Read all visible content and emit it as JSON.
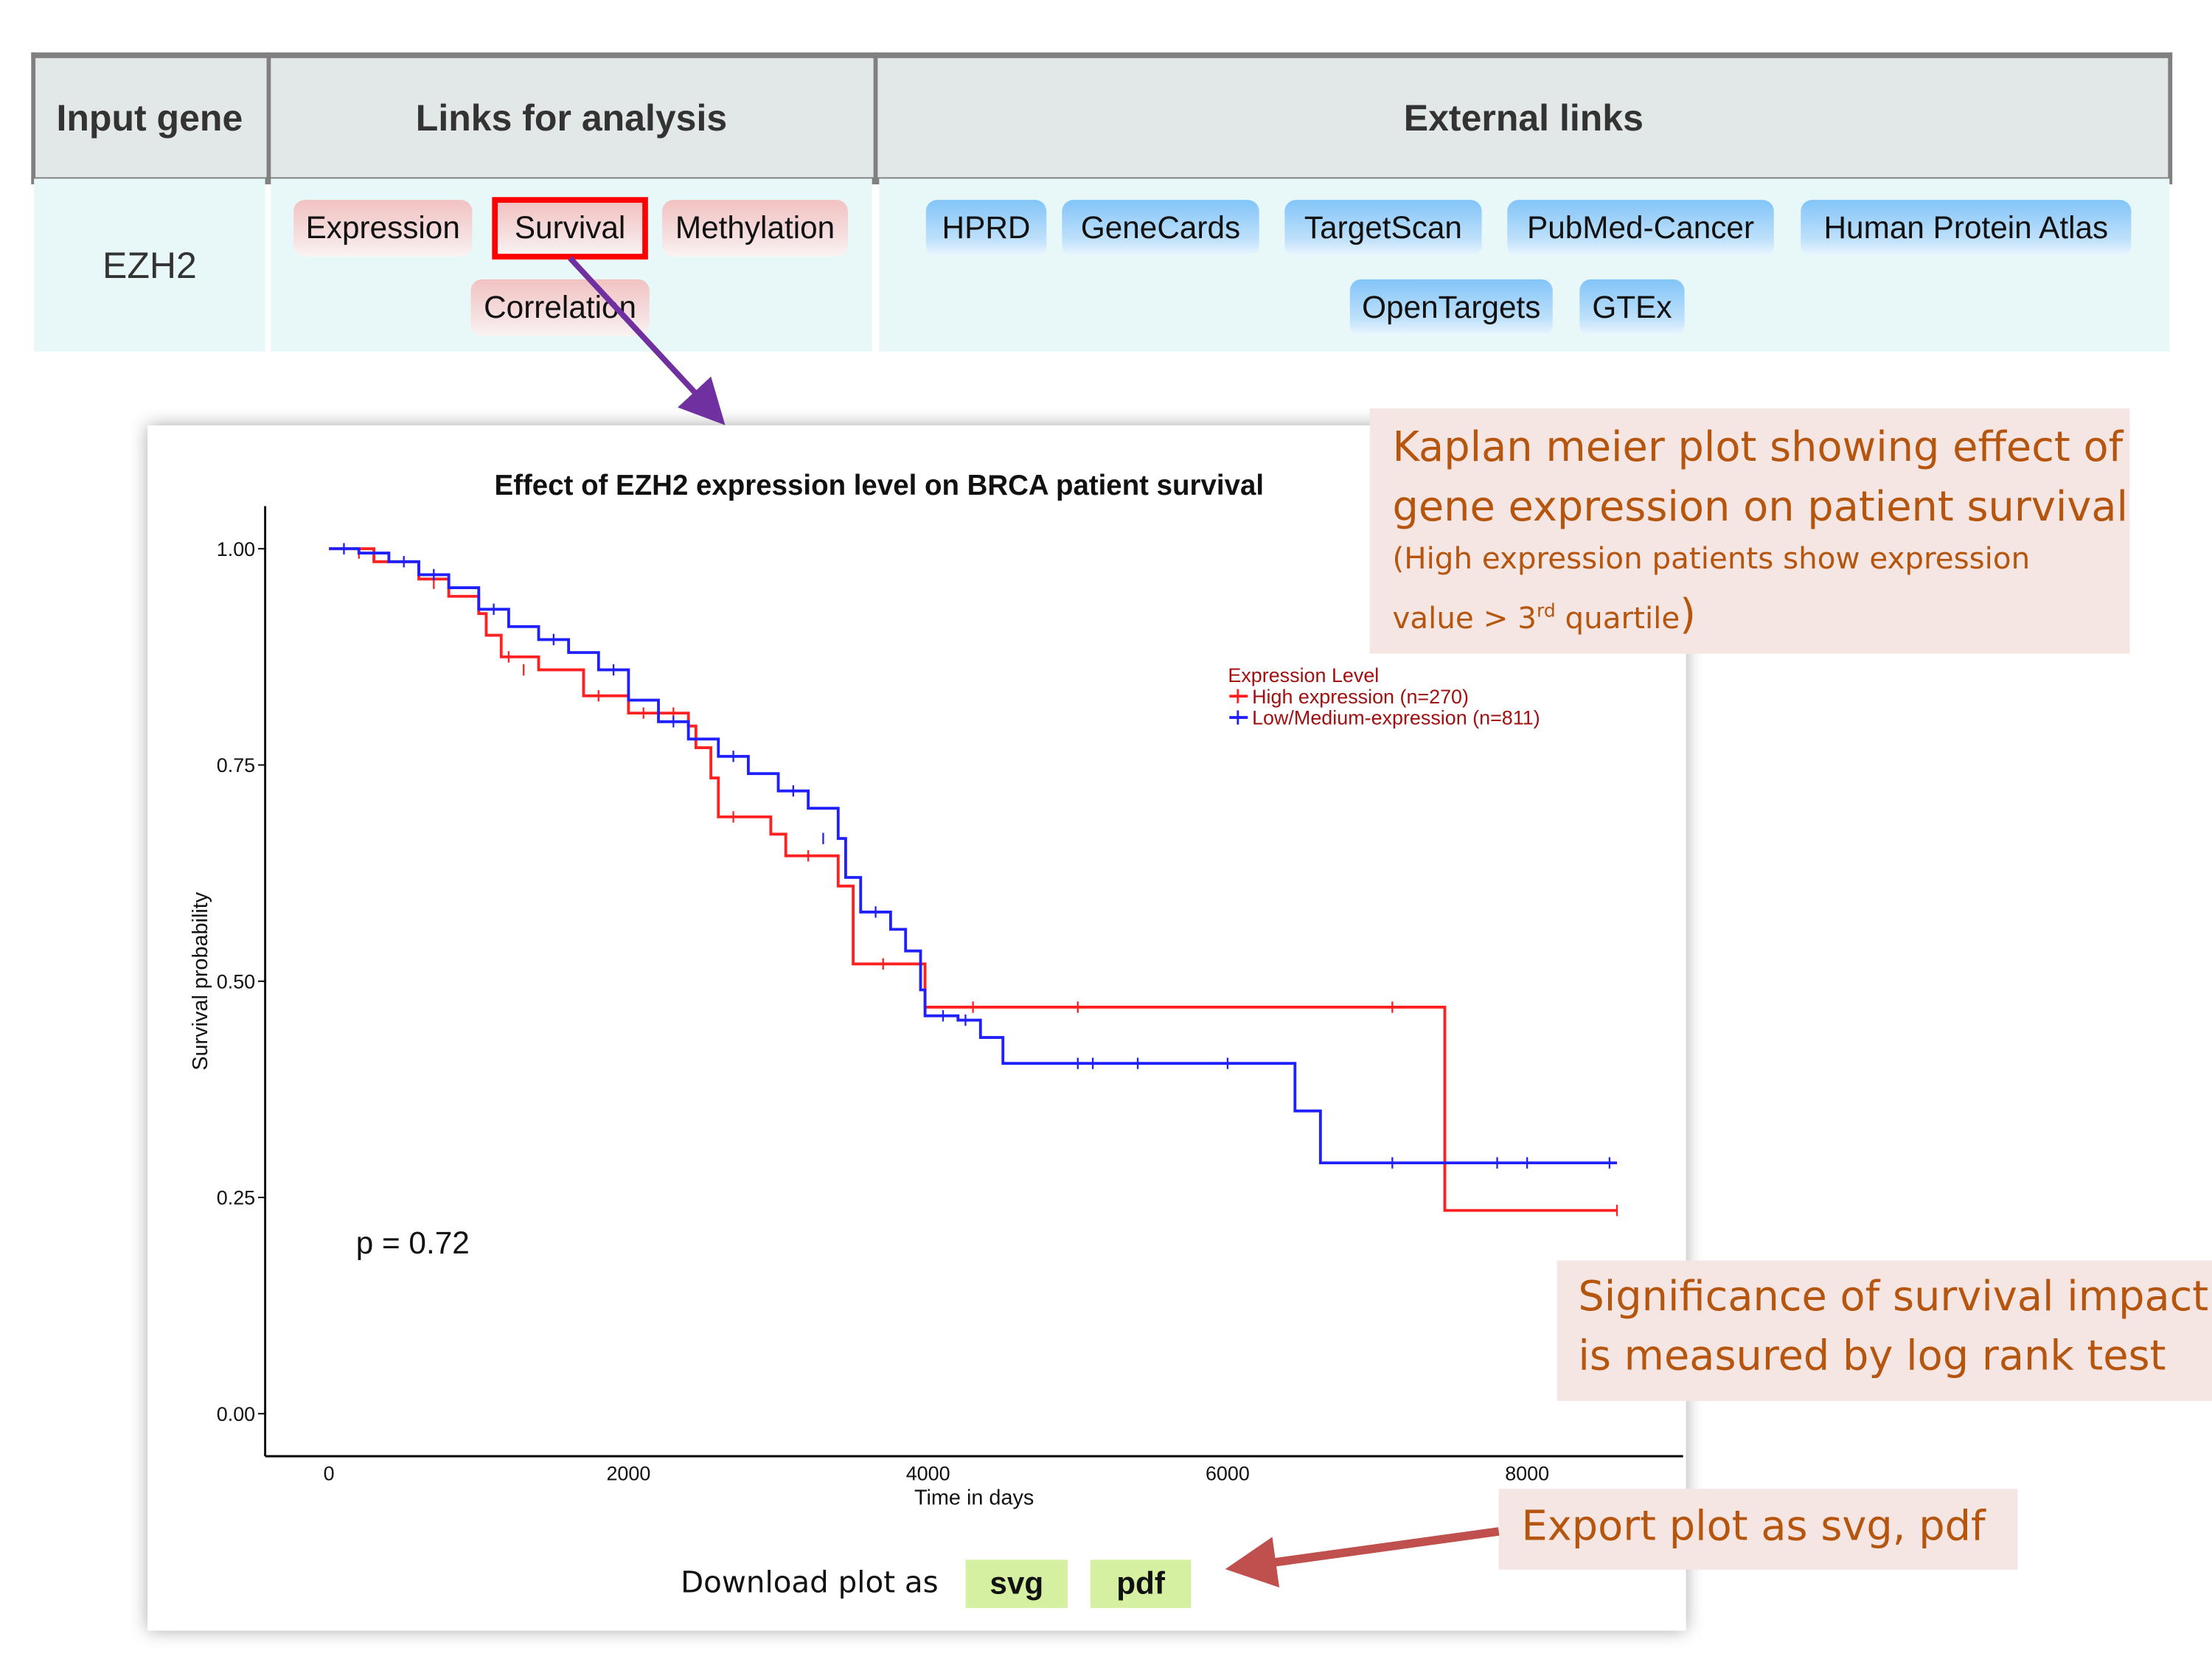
{
  "table": {
    "headers": [
      "Input gene",
      "Links for analysis",
      "External links"
    ],
    "gene": "EZH2",
    "analysis_links": [
      "Expression",
      "Survival",
      "Methylation",
      "Correlation"
    ],
    "selected_analysis": "Survival",
    "external_links": [
      "HPRD",
      "GeneCards",
      "TargetScan",
      "PubMed-Cancer",
      "Human Protein Atlas",
      "OpenTargets",
      "GTEx"
    ]
  },
  "download": {
    "label": "Download plot as",
    "svg": "svg",
    "pdf": "pdf"
  },
  "annotations": {
    "km_line1": "Kaplan meier plot showing effect of",
    "km_line2": "gene expression on patient survival",
    "km_line3": "(High expression patients show expression",
    "km_line4a": "value > 3",
    "km_line4sup": "rd",
    "km_line4b": " quartile",
    "km_line4c": ")",
    "sig_line1": "Significance of survival impact",
    "sig_line2": "is measured by log rank test",
    "export": "Export plot as svg, pdf"
  },
  "colors": {
    "high": "#ff2020",
    "low": "#2020ff",
    "note_text": "#b5550e",
    "arrow_purple": "#7030a0",
    "arrow_red": "#c0504d"
  },
  "chart_data": {
    "type": "line",
    "title": "Effect of EZH2 expression level on BRCA patient survival",
    "xlabel": "Time in days",
    "ylabel": "Survival probability",
    "xlim": [
      0,
      8600
    ],
    "ylim": [
      0,
      1
    ],
    "x_ticks": [
      "0",
      "2000",
      "4000",
      "6000",
      "8000"
    ],
    "x_tick_values": [
      0,
      2000,
      4000,
      6000,
      8000
    ],
    "y_ticks": [
      "0.00",
      "0.25",
      "0.50",
      "0.75",
      "1.00"
    ],
    "y_tick_values": [
      0,
      0.25,
      0.5,
      0.75,
      1
    ],
    "legend_title": "Expression Level",
    "legend_position": "top-right",
    "p_value": "p = 0.72",
    "series": [
      {
        "name": "High expression (n=270)",
        "color": "#ff2020",
        "steps": [
          [
            0,
            1
          ],
          [
            300,
            0.985
          ],
          [
            600,
            0.965
          ],
          [
            800,
            0.945
          ],
          [
            1000,
            0.925
          ],
          [
            1050,
            0.9
          ],
          [
            1150,
            0.875
          ],
          [
            1400,
            0.86
          ],
          [
            1700,
            0.83
          ],
          [
            2000,
            0.81
          ],
          [
            2400,
            0.795
          ],
          [
            2450,
            0.77
          ],
          [
            2550,
            0.735
          ],
          [
            2600,
            0.69
          ],
          [
            2950,
            0.67
          ],
          [
            3050,
            0.645
          ],
          [
            3400,
            0.61
          ],
          [
            3500,
            0.52
          ],
          [
            3980,
            0.47
          ],
          [
            7450,
            0.235
          ],
          [
            8600,
            0.235
          ]
        ],
        "censored": [
          [
            200,
            0.995
          ],
          [
            700,
            0.96
          ],
          [
            1200,
            0.875
          ],
          [
            1300,
            0.86
          ],
          [
            1800,
            0.83
          ],
          [
            2100,
            0.81
          ],
          [
            2300,
            0.81
          ],
          [
            2700,
            0.69
          ],
          [
            3200,
            0.645
          ],
          [
            3700,
            0.52
          ],
          [
            4300,
            0.47
          ],
          [
            5000,
            0.47
          ],
          [
            7100,
            0.47
          ],
          [
            8600,
            0.235
          ]
        ]
      },
      {
        "name": "Low/Medium-expression (n=811)",
        "color": "#2020ff",
        "steps": [
          [
            0,
            1
          ],
          [
            200,
            0.995
          ],
          [
            400,
            0.985
          ],
          [
            600,
            0.97
          ],
          [
            800,
            0.955
          ],
          [
            1000,
            0.93
          ],
          [
            1200,
            0.91
          ],
          [
            1400,
            0.895
          ],
          [
            1600,
            0.88
          ],
          [
            1800,
            0.86
          ],
          [
            2000,
            0.825
          ],
          [
            2200,
            0.8
          ],
          [
            2400,
            0.78
          ],
          [
            2600,
            0.76
          ],
          [
            2800,
            0.74
          ],
          [
            3000,
            0.72
          ],
          [
            3200,
            0.7
          ],
          [
            3400,
            0.665
          ],
          [
            3450,
            0.62
          ],
          [
            3550,
            0.58
          ],
          [
            3750,
            0.56
          ],
          [
            3850,
            0.535
          ],
          [
            3950,
            0.49
          ],
          [
            3980,
            0.46
          ],
          [
            4200,
            0.455
          ],
          [
            4350,
            0.435
          ],
          [
            4500,
            0.405
          ],
          [
            6450,
            0.35
          ],
          [
            6620,
            0.29
          ],
          [
            8600,
            0.29
          ]
        ],
        "censored": [
          [
            100,
            1
          ],
          [
            500,
            0.985
          ],
          [
            700,
            0.97
          ],
          [
            1100,
            0.93
          ],
          [
            1500,
            0.895
          ],
          [
            1900,
            0.86
          ],
          [
            2300,
            0.8
          ],
          [
            2700,
            0.76
          ],
          [
            3100,
            0.72
          ],
          [
            3300,
            0.665
          ],
          [
            3650,
            0.58
          ],
          [
            4100,
            0.46
          ],
          [
            4250,
            0.455
          ],
          [
            5000,
            0.405
          ],
          [
            5100,
            0.405
          ],
          [
            5400,
            0.405
          ],
          [
            6000,
            0.405
          ],
          [
            7100,
            0.29
          ],
          [
            7800,
            0.29
          ],
          [
            8000,
            0.29
          ],
          [
            8550,
            0.29
          ]
        ]
      }
    ]
  }
}
